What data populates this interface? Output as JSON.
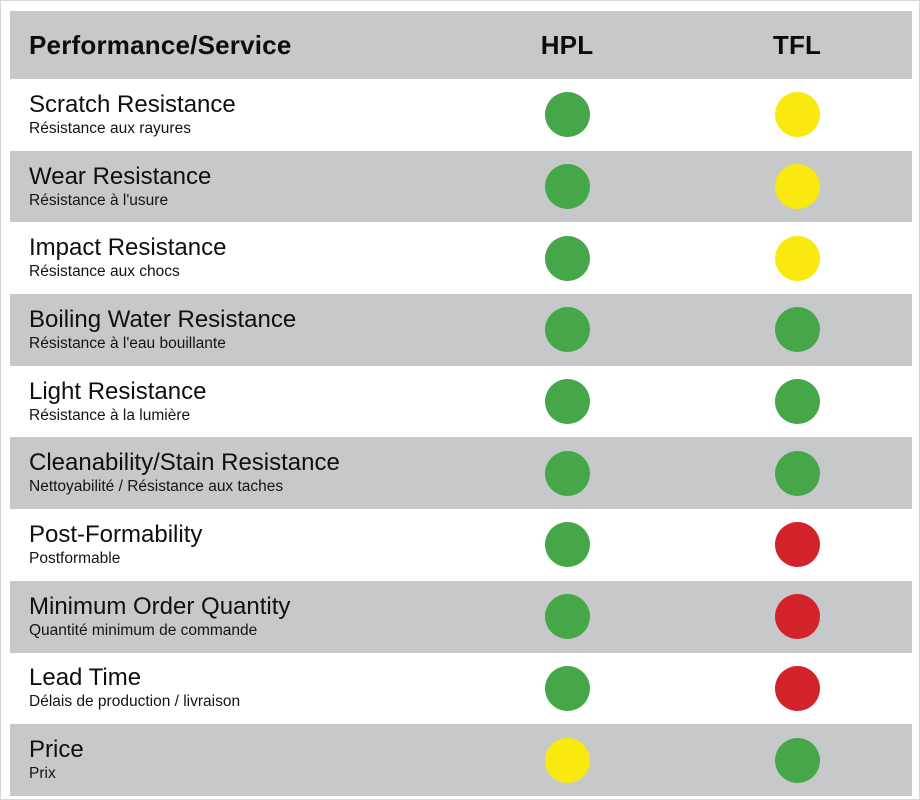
{
  "colors": {
    "green": "#46A749",
    "yellow": "#F9E90F",
    "red": "#D2232A",
    "row_gray": "#C7C8CA",
    "row_white": "#FFFFFF"
  },
  "header": {
    "label_column": "Performance/Service",
    "hpl_column": "HPL",
    "tfl_column": "TFL"
  },
  "rows": [
    {
      "title": "Scratch Resistance",
      "subtitle": "Résistance aux rayures",
      "hpl": "green",
      "tfl": "yellow"
    },
    {
      "title": "Wear Resistance",
      "subtitle": "Résistance à l'usure",
      "hpl": "green",
      "tfl": "yellow"
    },
    {
      "title": "Impact Resistance",
      "subtitle": "Résistance aux chocs",
      "hpl": "green",
      "tfl": "yellow"
    },
    {
      "title": "Boiling Water Resistance",
      "subtitle": "Résistance à l'eau bouillante",
      "hpl": "green",
      "tfl": "green"
    },
    {
      "title": "Light Resistance",
      "subtitle": "Résistance à la lumière",
      "hpl": "green",
      "tfl": "green"
    },
    {
      "title": "Cleanability/Stain Resistance",
      "subtitle": "Nettoyabilité / Résistance aux taches",
      "hpl": "green",
      "tfl": "green"
    },
    {
      "title": "Post-Formability",
      "subtitle": "Postformable",
      "hpl": "green",
      "tfl": "red"
    },
    {
      "title": "Minimum Order Quantity",
      "subtitle": "Quantité minimum de commande",
      "hpl": "green",
      "tfl": "red"
    },
    {
      "title": "Lead Time",
      "subtitle": "Délais de production / livraison",
      "hpl": "green",
      "tfl": "red"
    },
    {
      "title": "Price",
      "subtitle": "Prix",
      "hpl": "yellow",
      "tfl": "green"
    }
  ],
  "chart_data": {
    "type": "table",
    "title": "Performance/Service",
    "columns": [
      "Performance/Service",
      "HPL",
      "TFL"
    ],
    "rating_scale": [
      "green",
      "yellow",
      "red"
    ],
    "rows": [
      {
        "label_en": "Scratch Resistance",
        "label_fr": "Résistance aux rayures",
        "HPL": "green",
        "TFL": "yellow"
      },
      {
        "label_en": "Wear Resistance",
        "label_fr": "Résistance à l'usure",
        "HPL": "green",
        "TFL": "yellow"
      },
      {
        "label_en": "Impact Resistance",
        "label_fr": "Résistance aux chocs",
        "HPL": "green",
        "TFL": "yellow"
      },
      {
        "label_en": "Boiling Water Resistance",
        "label_fr": "Résistance à l'eau bouillante",
        "HPL": "green",
        "TFL": "green"
      },
      {
        "label_en": "Light Resistance",
        "label_fr": "Résistance à la lumière",
        "HPL": "green",
        "TFL": "green"
      },
      {
        "label_en": "Cleanability/Stain Resistance",
        "label_fr": "Nettoyabilité / Résistance aux taches",
        "HPL": "green",
        "TFL": "green"
      },
      {
        "label_en": "Post-Formability",
        "label_fr": "Postformable",
        "HPL": "green",
        "TFL": "red"
      },
      {
        "label_en": "Minimum Order Quantity",
        "label_fr": "Quantité minimum de commande",
        "HPL": "green",
        "TFL": "red"
      },
      {
        "label_en": "Lead Time",
        "label_fr": "Délais de production / livraison",
        "HPL": "green",
        "TFL": "red"
      },
      {
        "label_en": "Price",
        "label_fr": "Prix",
        "HPL": "yellow",
        "TFL": "green"
      }
    ]
  }
}
